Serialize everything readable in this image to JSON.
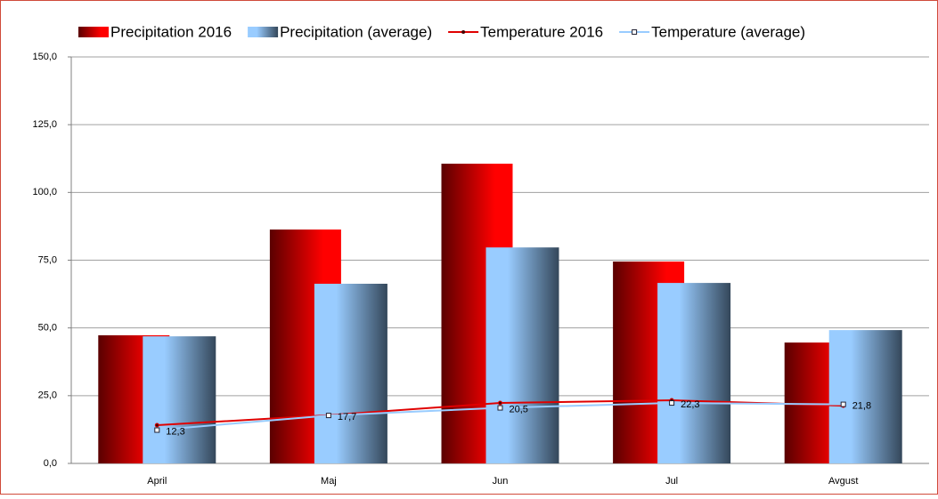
{
  "chart_data": {
    "type": "bar-line",
    "categories": [
      "April",
      "Maj",
      "Jun",
      "Jul",
      "Avgust"
    ],
    "series": [
      {
        "name": "Precipitation 2016",
        "type": "bar",
        "color": "#ff0000",
        "values": [
          47.3,
          86.3,
          110.6,
          74.5,
          44.6
        ]
      },
      {
        "name": "Precipitation (average)",
        "type": "bar",
        "color": "#99ccff",
        "values": [
          46.9,
          66.3,
          79.7,
          66.6,
          49.2
        ]
      },
      {
        "name": "Temperature 2016",
        "type": "line",
        "color": "#e00000",
        "values": [
          14.1,
          17.8,
          22.3,
          23.3,
          21.3
        ]
      },
      {
        "name": "Temperature (average)",
        "type": "line",
        "color": "#99ccff",
        "values": [
          12.3,
          17.7,
          20.5,
          22.3,
          21.8
        ],
        "value_labels": [
          "12,3",
          "17,7",
          "20,5",
          "22,3",
          "21,8"
        ]
      }
    ],
    "ylim": [
      0,
      150
    ],
    "yticks": [
      {
        "value": 0,
        "label": "0,0"
      },
      {
        "value": 25,
        "label": "25,0"
      },
      {
        "value": 50,
        "label": "50,0"
      },
      {
        "value": 75,
        "label": "75,0"
      },
      {
        "value": 100,
        "label": "100,0"
      },
      {
        "value": 125,
        "label": "125,0"
      },
      {
        "value": 150,
        "label": "150,0"
      }
    ],
    "grid": true,
    "legend": "top"
  }
}
